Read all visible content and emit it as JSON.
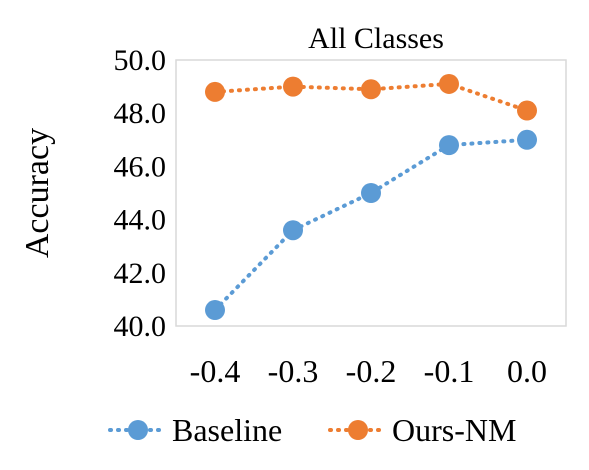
{
  "chart_data": {
    "type": "line",
    "title": "All Classes",
    "xlabel": "",
    "ylabel": "Accuracy",
    "categories": [
      "-0.4",
      "-0.3",
      "-0.2",
      "-0.1",
      "0.0"
    ],
    "ylim": [
      40.0,
      50.0
    ],
    "yticks": [
      "40.0",
      "42.0",
      "44.0",
      "46.0",
      "48.0",
      "50.0"
    ],
    "grid": false,
    "legend_position": "bottom",
    "series": [
      {
        "name": "Baseline",
        "color": "#5B9BD5",
        "values": [
          40.6,
          43.6,
          45.0,
          46.8,
          47.0
        ]
      },
      {
        "name": "Ours-NM",
        "color": "#ED7D31",
        "values": [
          48.8,
          49.0,
          48.9,
          49.1,
          48.1
        ]
      }
    ]
  }
}
